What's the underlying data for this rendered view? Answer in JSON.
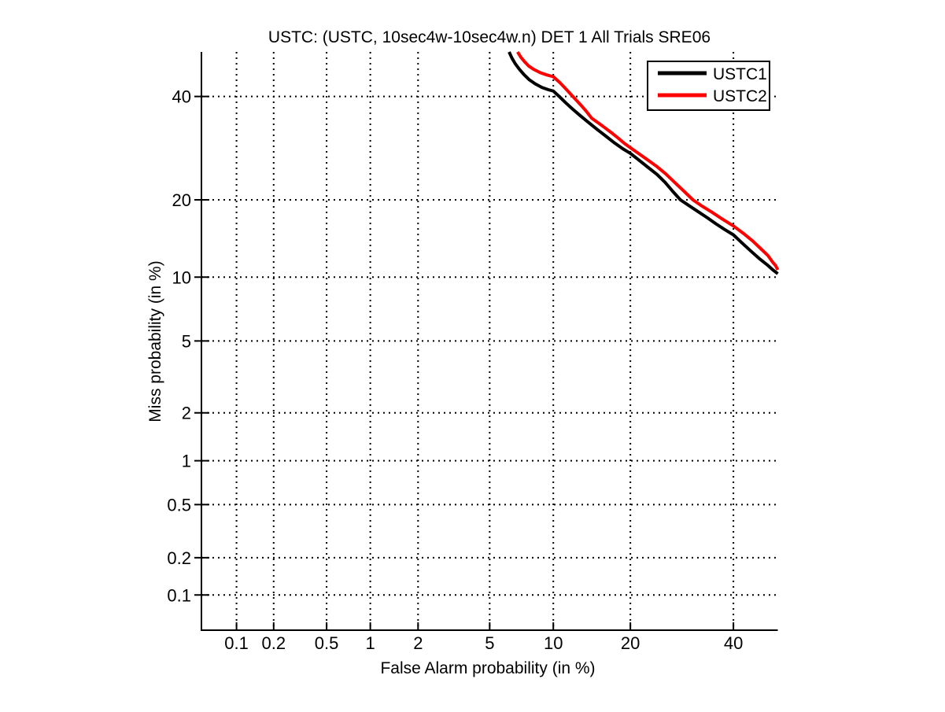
{
  "figure": {
    "background": "#ffffff"
  },
  "chart_data": {
    "type": "line",
    "subtype": "DET-curve",
    "title": "USTC: (USTC, 10sec4w-10sec4w.n) DET 1 All Trials SRE06",
    "xlabel": "False Alarm probability (in %)",
    "ylabel": "Miss probability (in %)",
    "axis_scale": "probit (normal-deviate) on both axes",
    "grid": "dotted",
    "grid_color": "#000000",
    "xlim": [
      0.05,
      50
    ],
    "ylim": [
      0.05,
      50
    ],
    "x_ticks": [
      0.1,
      0.2,
      0.5,
      1,
      2,
      5,
      10,
      20,
      40
    ],
    "x_tick_labels": [
      "0.1",
      "0.2",
      "0.5",
      "1",
      "2",
      "5",
      "10",
      "20",
      "40"
    ],
    "y_ticks": [
      0.1,
      0.2,
      0.5,
      1,
      2,
      5,
      10,
      20,
      40
    ],
    "y_tick_labels": [
      "0.1",
      "0.2",
      "0.5",
      "1",
      "2",
      "5",
      "10",
      "20",
      "40"
    ],
    "legend_position": "top-right",
    "series": [
      {
        "name": "USTC1",
        "color": "#000000",
        "points": [
          [
            6.25,
            50.0
          ],
          [
            6.45,
            48.6
          ],
          [
            6.7,
            47.3
          ],
          [
            7.0,
            46.1
          ],
          [
            7.35,
            44.9
          ],
          [
            7.8,
            43.7
          ],
          [
            8.3,
            42.8
          ],
          [
            8.9,
            42.0
          ],
          [
            9.5,
            41.5
          ],
          [
            10.0,
            41.2
          ],
          [
            10.6,
            40.0
          ],
          [
            11.3,
            38.6
          ],
          [
            12.1,
            37.2
          ],
          [
            13.0,
            35.8
          ],
          [
            14.0,
            34.4
          ],
          [
            15.1,
            33.0
          ],
          [
            16.3,
            31.6
          ],
          [
            17.6,
            30.2
          ],
          [
            18.8,
            29.1
          ],
          [
            20.0,
            28.2
          ],
          [
            21.4,
            26.9
          ],
          [
            22.9,
            25.6
          ],
          [
            24.5,
            24.3
          ],
          [
            26.0,
            22.9
          ],
          [
            27.4,
            21.4
          ],
          [
            28.9,
            20.0
          ],
          [
            30.6,
            19.1
          ],
          [
            32.4,
            18.2
          ],
          [
            34.3,
            17.3
          ],
          [
            36.2,
            16.4
          ],
          [
            38.1,
            15.6
          ],
          [
            40.0,
            14.9
          ],
          [
            42.0,
            13.8
          ],
          [
            44.0,
            12.8
          ],
          [
            46.0,
            11.9
          ],
          [
            47.8,
            11.2
          ],
          [
            49.0,
            10.7
          ],
          [
            50.0,
            10.35
          ]
        ]
      },
      {
        "name": "USTC2",
        "color": "#ff0000",
        "points": [
          [
            6.87,
            50.0
          ],
          [
            7.1,
            48.9
          ],
          [
            7.4,
            47.8
          ],
          [
            7.75,
            46.8
          ],
          [
            8.2,
            46.0
          ],
          [
            8.75,
            45.3
          ],
          [
            9.35,
            44.8
          ],
          [
            10.0,
            44.4
          ],
          [
            10.7,
            43.0
          ],
          [
            11.4,
            41.5
          ],
          [
            12.1,
            40.0
          ],
          [
            13.0,
            38.2
          ],
          [
            13.7,
            36.8
          ],
          [
            14.4,
            35.3
          ],
          [
            15.2,
            34.4
          ],
          [
            16.1,
            33.4
          ],
          [
            17.1,
            32.3
          ],
          [
            18.1,
            31.2
          ],
          [
            19.0,
            30.2
          ],
          [
            20.0,
            29.3
          ],
          [
            21.3,
            28.2
          ],
          [
            22.8,
            27.0
          ],
          [
            24.4,
            25.8
          ],
          [
            26.1,
            24.4
          ],
          [
            27.8,
            22.9
          ],
          [
            29.6,
            21.4
          ],
          [
            31.4,
            20.0
          ],
          [
            33.3,
            19.0
          ],
          [
            35.3,
            18.1
          ],
          [
            37.5,
            17.1
          ],
          [
            40.0,
            16.1
          ],
          [
            42.2,
            15.1
          ],
          [
            44.3,
            14.1
          ],
          [
            46.2,
            13.1
          ],
          [
            47.8,
            12.3
          ],
          [
            48.8,
            11.6
          ],
          [
            49.5,
            11.2
          ],
          [
            50.0,
            10.75
          ]
        ]
      }
    ]
  }
}
